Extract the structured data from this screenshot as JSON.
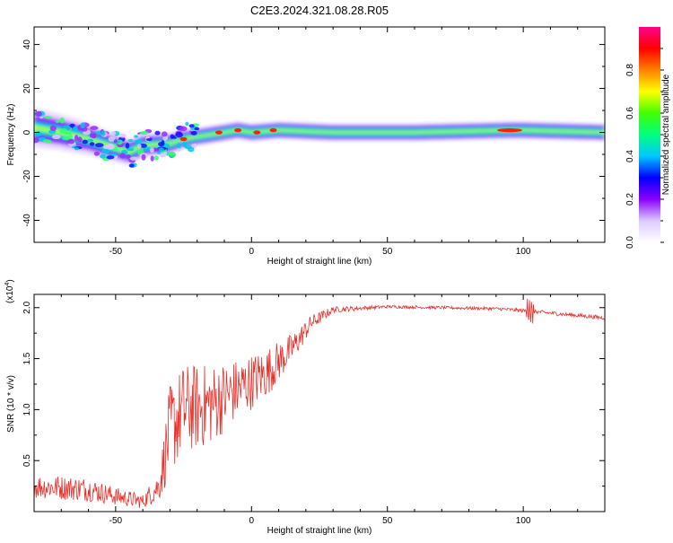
{
  "title": "C2E3.2024.321.08.28.R05",
  "chart_data": [
    {
      "type": "heatmap",
      "xlabel": "Height of straight line (km)",
      "ylabel": "Frequency (Hz)",
      "xlim": [
        -80,
        130
      ],
      "ylim": [
        -50,
        48
      ],
      "xticks": [
        -50,
        0,
        50,
        100
      ],
      "yticks": [
        -40,
        -20,
        0,
        20,
        40
      ],
      "xtick_labels": [
        "-50",
        "0",
        "50",
        "100"
      ],
      "ytick_labels": [
        "-40",
        "-20",
        "0",
        "20",
        "40"
      ],
      "ridge": [
        {
          "x": -79,
          "y": 2
        },
        {
          "x": -70,
          "y": 0
        },
        {
          "x": -60,
          "y": -3
        },
        {
          "x": -50,
          "y": -7
        },
        {
          "x": -45,
          "y": -9
        },
        {
          "x": -40,
          "y": -6
        },
        {
          "x": -30,
          "y": -5
        },
        {
          "x": -25,
          "y": -3
        },
        {
          "x": -15,
          "y": -1
        },
        {
          "x": -5,
          "y": 1
        },
        {
          "x": 0,
          "y": 0
        },
        {
          "x": 10,
          "y": 1
        },
        {
          "x": 30,
          "y": 0
        },
        {
          "x": 60,
          "y": 0
        },
        {
          "x": 95,
          "y": 1
        },
        {
          "x": 100,
          "y": 1
        },
        {
          "x": 130,
          "y": 0
        }
      ],
      "hotspots": [
        {
          "x": -25,
          "y": -3,
          "amp": 0.85
        },
        {
          "x": -12,
          "y": 0,
          "amp": 0.9
        },
        {
          "x": -5,
          "y": 1,
          "amp": 0.85
        },
        {
          "x": 2,
          "y": 0,
          "amp": 0.9
        },
        {
          "x": 8,
          "y": 1,
          "amp": 0.8
        },
        {
          "x": 95,
          "y": 1,
          "amp": 0.95
        }
      ]
    },
    {
      "type": "line",
      "xlabel": "Height of straight line (km)",
      "ylabel": "SNR (10 * v/v)",
      "y_multiplier": "(x10",
      "y_multiplier_exp": "4",
      "y_multiplier_close": ")",
      "xlim": [
        -80,
        130
      ],
      "ylim": [
        0,
        2.13
      ],
      "xticks": [
        -50,
        0,
        50,
        100
      ],
      "yticks": [
        0.5,
        1.0,
        1.5,
        2.0
      ],
      "xtick_labels": [
        "-50",
        "0",
        "50",
        "100"
      ],
      "ytick_labels": [
        "0.5",
        "1.0",
        "1.5",
        "2.0"
      ],
      "color": "#e8302a",
      "envelope": [
        {
          "x": -80,
          "y": 0.25,
          "spread": 0.12
        },
        {
          "x": -60,
          "y": 0.22,
          "spread": 0.12
        },
        {
          "x": -50,
          "y": 0.15,
          "spread": 0.09
        },
        {
          "x": -40,
          "y": 0.1,
          "spread": 0.07
        },
        {
          "x": -34,
          "y": 0.25,
          "spread": 0.15
        },
        {
          "x": -30,
          "y": 0.8,
          "spread": 0.45
        },
        {
          "x": -25,
          "y": 1.0,
          "spread": 0.45
        },
        {
          "x": -15,
          "y": 1.05,
          "spread": 0.4
        },
        {
          "x": -5,
          "y": 1.2,
          "spread": 0.3
        },
        {
          "x": 5,
          "y": 1.35,
          "spread": 0.25
        },
        {
          "x": 15,
          "y": 1.6,
          "spread": 0.15
        },
        {
          "x": 22,
          "y": 1.85,
          "spread": 0.08
        },
        {
          "x": 30,
          "y": 1.98,
          "spread": 0.03
        },
        {
          "x": 50,
          "y": 2.01,
          "spread": 0.015
        },
        {
          "x": 90,
          "y": 1.99,
          "spread": 0.015
        },
        {
          "x": 100,
          "y": 1.97,
          "spread": 0.02
        },
        {
          "x": 130,
          "y": 1.9,
          "spread": 0.02
        }
      ]
    }
  ],
  "colorbar": {
    "label": "Normalized spectral amplitude",
    "ticks": [
      0.0,
      0.2,
      0.4,
      0.6,
      0.8
    ],
    "tick_labels": [
      "0.0",
      "0.2",
      "0.4",
      "0.6",
      "0.8"
    ],
    "range": [
      0,
      1
    ],
    "colors": [
      "#ffffff",
      "#dccaff",
      "#8a00ff",
      "#0000ff",
      "#00c8ff",
      "#00ff80",
      "#40ff00",
      "#ffff00",
      "#ff8000",
      "#ff0000",
      "#ff0090"
    ]
  }
}
